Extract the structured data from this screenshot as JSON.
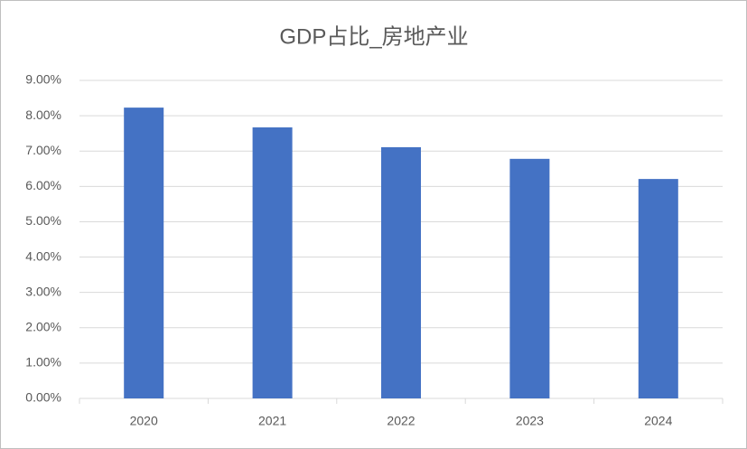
{
  "chart_data": {
    "type": "bar",
    "title": "GDP占比_房地产业",
    "categories": [
      "2020",
      "2021",
      "2022",
      "2023",
      "2024"
    ],
    "values": [
      8.23,
      7.67,
      7.11,
      6.78,
      6.21
    ],
    "color": "#4472c4",
    "ylim": [
      0,
      9
    ],
    "yticks": [
      {
        "value": 0,
        "label": "0.00%"
      },
      {
        "value": 1,
        "label": "1.00%"
      },
      {
        "value": 2,
        "label": "2.00%"
      },
      {
        "value": 3,
        "label": "3.00%"
      },
      {
        "value": 4,
        "label": "4.00%"
      },
      {
        "value": 5,
        "label": "5.00%"
      },
      {
        "value": 6,
        "label": "6.00%"
      },
      {
        "value": 7,
        "label": "7.00%"
      },
      {
        "value": 8,
        "label": "8.00%"
      },
      {
        "value": 9,
        "label": "9.00%"
      }
    ],
    "grid": true
  }
}
